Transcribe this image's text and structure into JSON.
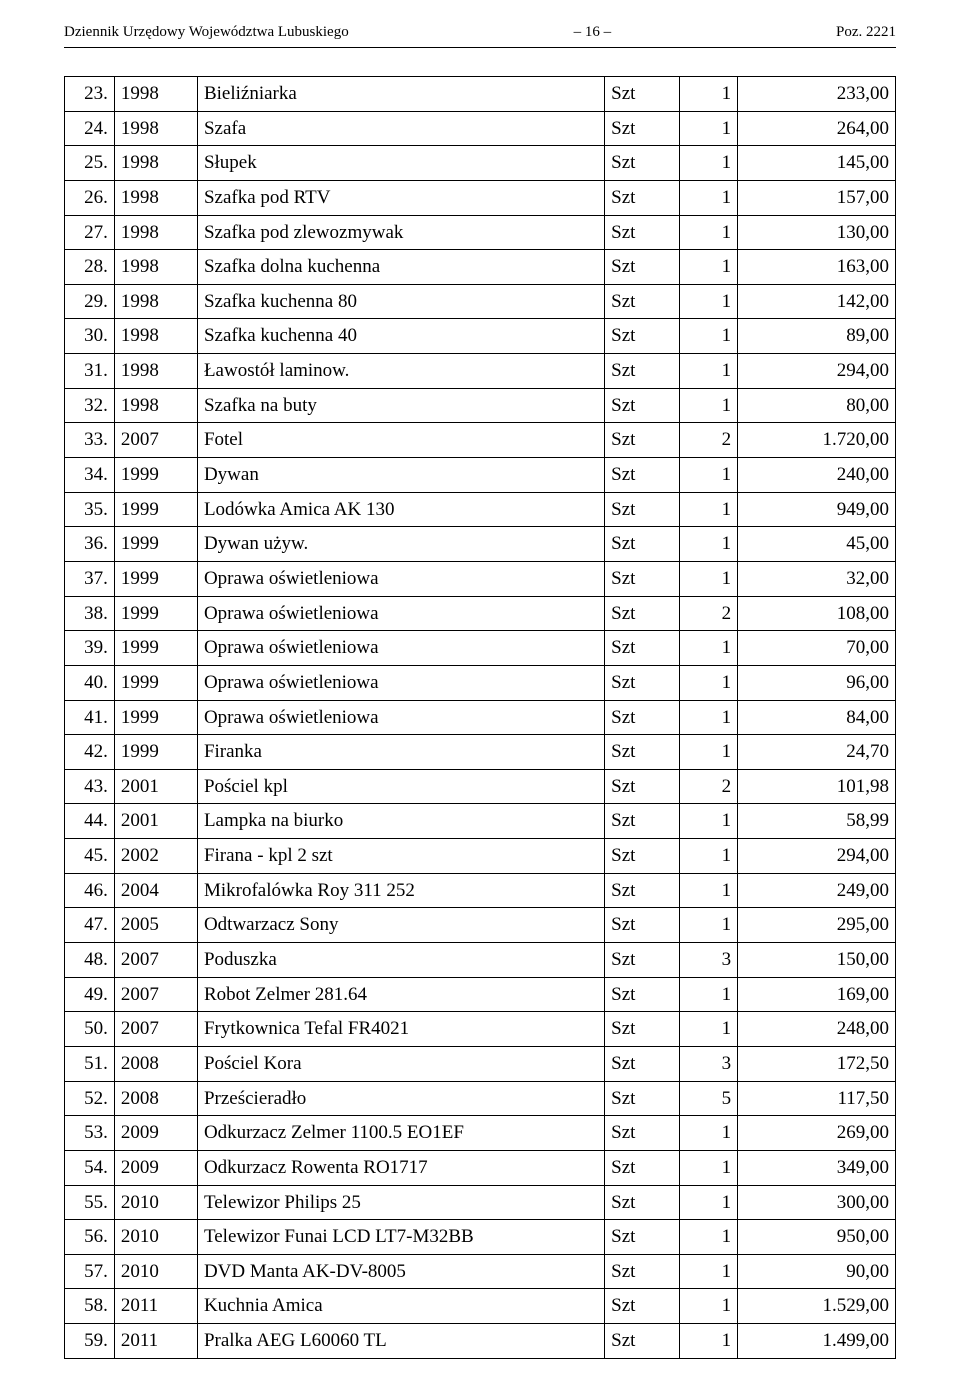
{
  "header": {
    "left": "Dziennik Urzędowy Województwa Lubuskiego",
    "mid": "– 16 –",
    "right": "Poz. 2221"
  },
  "table": {
    "rows": [
      {
        "idx": "23.",
        "year": "1998",
        "name": "Bieliźniarka",
        "unit": "Szt",
        "qty": "1",
        "val": "233,00"
      },
      {
        "idx": "24.",
        "year": "1998",
        "name": "Szafa",
        "unit": "Szt",
        "qty": "1",
        "val": "264,00"
      },
      {
        "idx": "25.",
        "year": "1998",
        "name": "Słupek",
        "unit": "Szt",
        "qty": "1",
        "val": "145,00"
      },
      {
        "idx": "26.",
        "year": "1998",
        "name": "Szafka pod RTV",
        "unit": "Szt",
        "qty": "1",
        "val": "157,00"
      },
      {
        "idx": "27.",
        "year": "1998",
        "name": "Szafka pod zlewozmywak",
        "unit": "Szt",
        "qty": "1",
        "val": "130,00"
      },
      {
        "idx": "28.",
        "year": "1998",
        "name": "Szafka dolna kuchenna",
        "unit": "Szt",
        "qty": "1",
        "val": "163,00"
      },
      {
        "idx": "29.",
        "year": "1998",
        "name": "Szafka kuchenna 80",
        "unit": "Szt",
        "qty": "1",
        "val": "142,00"
      },
      {
        "idx": "30.",
        "year": "1998",
        "name": "Szafka kuchenna 40",
        "unit": "Szt",
        "qty": "1",
        "val": "89,00"
      },
      {
        "idx": "31.",
        "year": "1998",
        "name": "Ławostół laminow.",
        "unit": "Szt",
        "qty": "1",
        "val": "294,00"
      },
      {
        "idx": "32.",
        "year": "1998",
        "name": "Szafka na buty",
        "unit": "Szt",
        "qty": "1",
        "val": "80,00"
      },
      {
        "idx": "33.",
        "year": "2007",
        "name": "Fotel",
        "unit": "Szt",
        "qty": "2",
        "val": "1.720,00"
      },
      {
        "idx": "34.",
        "year": "1999",
        "name": "Dywan",
        "unit": "Szt",
        "qty": "1",
        "val": "240,00"
      },
      {
        "idx": "35.",
        "year": "1999",
        "name": "Lodówka Amica  AK 130",
        "unit": "Szt",
        "qty": "1",
        "val": "949,00"
      },
      {
        "idx": "36.",
        "year": "1999",
        "name": "Dywan używ.",
        "unit": "Szt",
        "qty": "1",
        "val": "45,00"
      },
      {
        "idx": "37.",
        "year": "1999",
        "name": "Oprawa oświetleniowa",
        "unit": "Szt",
        "qty": "1",
        "val": "32,00"
      },
      {
        "idx": "38.",
        "year": "1999",
        "name": "Oprawa oświetleniowa",
        "unit": "Szt",
        "qty": "2",
        "val": "108,00"
      },
      {
        "idx": "39.",
        "year": "1999",
        "name": "Oprawa oświetleniowa",
        "unit": "Szt",
        "qty": "1",
        "val": "70,00"
      },
      {
        "idx": "40.",
        "year": "1999",
        "name": "Oprawa oświetleniowa",
        "unit": "Szt",
        "qty": "1",
        "val": "96,00"
      },
      {
        "idx": "41.",
        "year": "1999",
        "name": "Oprawa oświetleniowa",
        "unit": "Szt",
        "qty": "1",
        "val": "84,00"
      },
      {
        "idx": "42.",
        "year": "1999",
        "name": "Firanka",
        "unit": "Szt",
        "qty": "1",
        "val": "24,70"
      },
      {
        "idx": "43.",
        "year": "2001",
        "name": "Pościel kpl",
        "unit": "Szt",
        "qty": "2",
        "val": "101,98"
      },
      {
        "idx": "44.",
        "year": "2001",
        "name": "Lampka na biurko",
        "unit": "Szt",
        "qty": "1",
        "val": "58,99"
      },
      {
        "idx": "45.",
        "year": "2002",
        "name": "Firana - kpl 2 szt",
        "unit": "Szt",
        "qty": "1",
        "val": "294,00"
      },
      {
        "idx": "46.",
        "year": "2004",
        "name": "Mikrofalówka Roy 311 252",
        "unit": "Szt",
        "qty": "1",
        "val": "249,00"
      },
      {
        "idx": "47.",
        "year": "2005",
        "name": "Odtwarzacz Sony",
        "unit": "Szt",
        "qty": "1",
        "val": "295,00"
      },
      {
        "idx": "48.",
        "year": "2007",
        "name": "Poduszka",
        "unit": "Szt",
        "qty": "3",
        "val": "150,00"
      },
      {
        "idx": "49.",
        "year": "2007",
        "name": "Robot Zelmer   281.64",
        "unit": "Szt",
        "qty": "1",
        "val": "169,00"
      },
      {
        "idx": "50.",
        "year": "2007",
        "name": "Frytkownica Tefal   FR4021",
        "unit": "Szt",
        "qty": "1",
        "val": "248,00"
      },
      {
        "idx": "51.",
        "year": "2008",
        "name": "Pościel Kora",
        "unit": "Szt",
        "qty": "3",
        "val": "172,50"
      },
      {
        "idx": "52.",
        "year": "2008",
        "name": "Prześcieradło",
        "unit": "Szt",
        "qty": "5",
        "val": "117,50"
      },
      {
        "idx": "53.",
        "year": "2009",
        "name": "Odkurzacz Zelmer  1100.5 EO1EF",
        "unit": "Szt",
        "qty": "1",
        "val": "269,00"
      },
      {
        "idx": "54.",
        "year": "2009",
        "name": "Odkurzacz Rowenta RO1717",
        "unit": "Szt",
        "qty": "1",
        "val": "349,00"
      },
      {
        "idx": "55.",
        "year": "2010",
        "name": "Telewizor Philips 25",
        "unit": "Szt",
        "qty": "1",
        "val": "300,00"
      },
      {
        "idx": "56.",
        "year": "2010",
        "name": "Telewizor Funai LCD  LT7-M32BB",
        "unit": "Szt",
        "qty": "1",
        "val": "950,00"
      },
      {
        "idx": "57.",
        "year": "2010",
        "name": "DVD Manta AK-DV-8005",
        "unit": "Szt",
        "qty": "1",
        "val": "90,00"
      },
      {
        "idx": "58.",
        "year": "2011",
        "name": "Kuchnia Amica",
        "unit": "Szt",
        "qty": "1",
        "val": "1.529,00"
      },
      {
        "idx": "59.",
        "year": "2011",
        "name": "Pralka AEG L60060 TL",
        "unit": "Szt",
        "qty": "1",
        "val": "1.499,00"
      }
    ]
  }
}
